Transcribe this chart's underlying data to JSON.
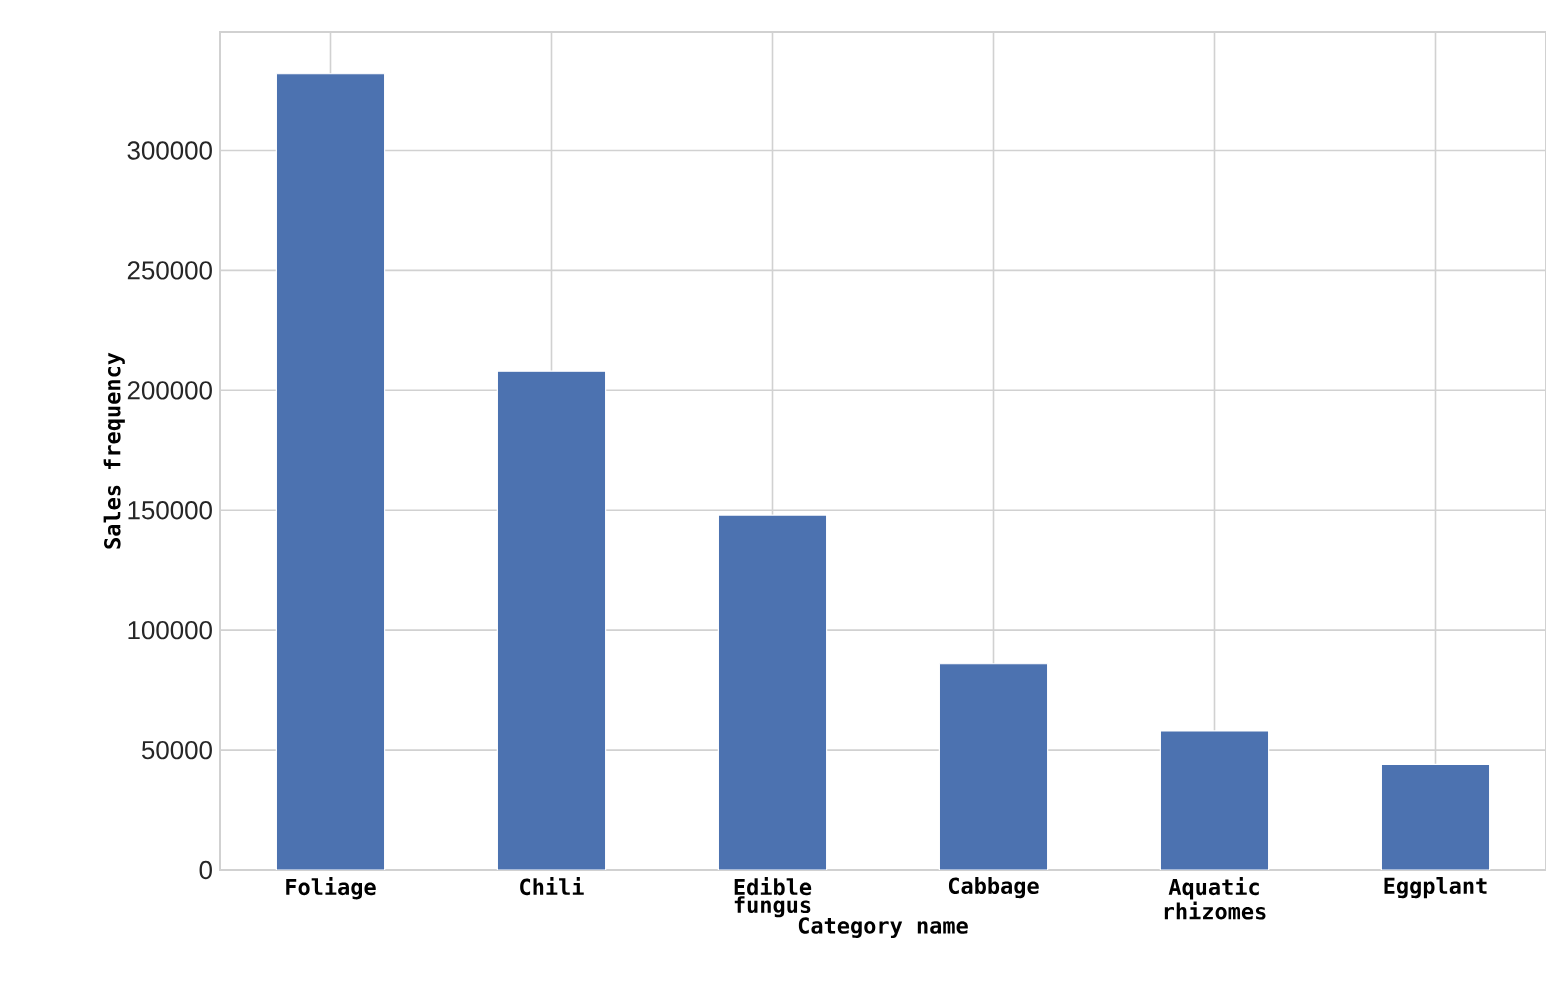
{
  "chart_data": {
    "type": "bar",
    "categories": [
      "Foliage",
      "Chili",
      "Edible fungus",
      "Cabbage",
      "Aquatic rhizomes",
      "Eggplant"
    ],
    "values": [
      332000,
      208000,
      148000,
      86000,
      58000,
      44000
    ],
    "color": "#4c72b0",
    "xlabel": "Category name",
    "ylabel": "Sales frequency",
    "ylim": [
      0,
      349400
    ],
    "yticks": [
      0,
      50000,
      100000,
      150000,
      200000,
      250000,
      300000
    ],
    "grid": true
  }
}
